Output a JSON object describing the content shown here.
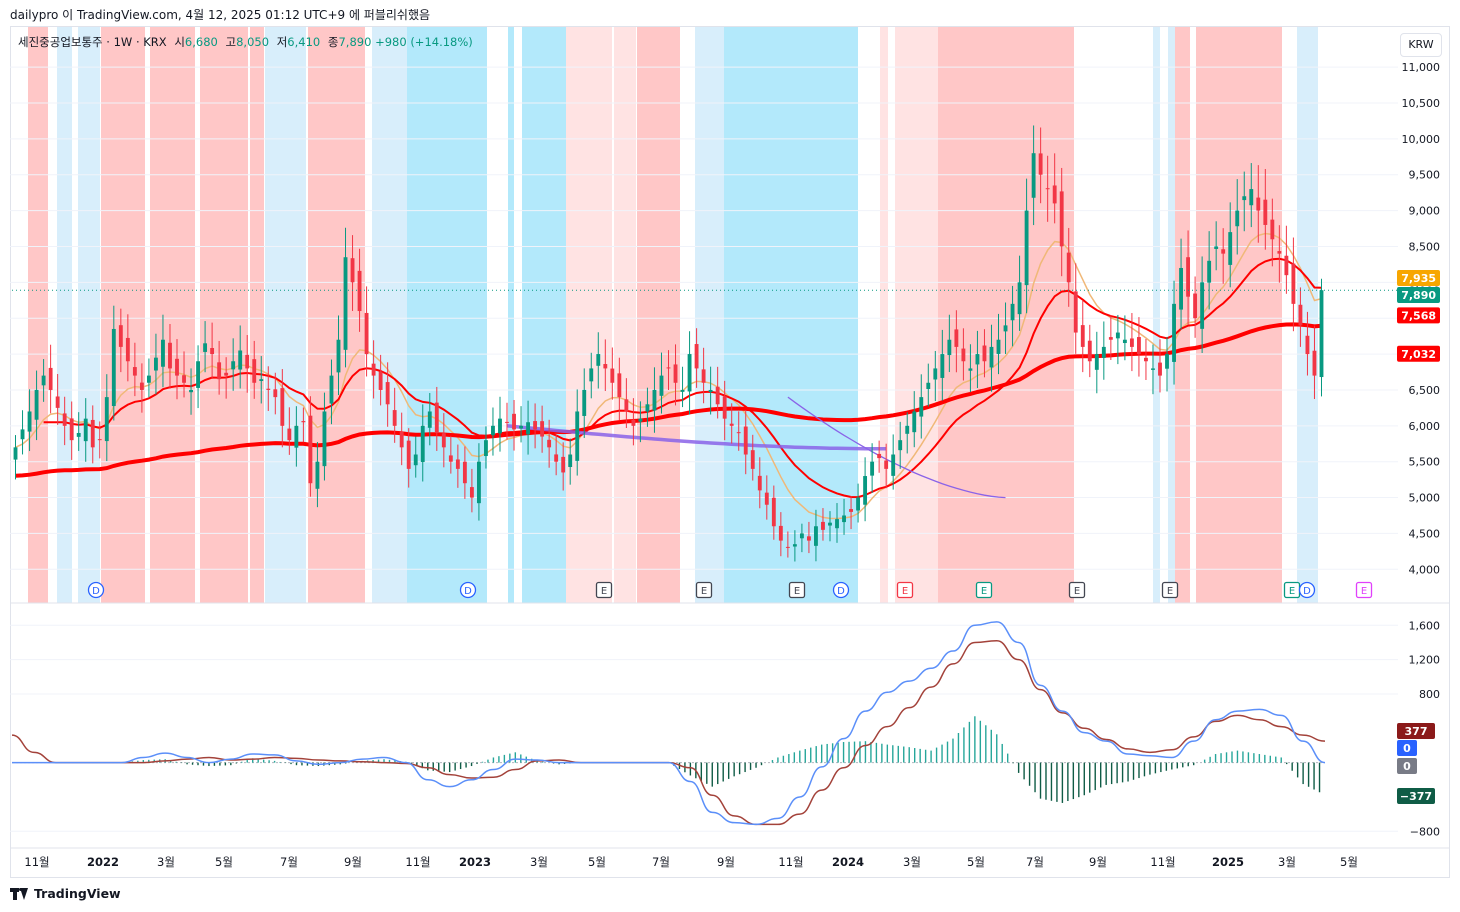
{
  "header": {
    "text": "dailypro 이 TradingView.com, 4월 12, 2025 01:12 UTC+9 에 퍼블리쉬했음"
  },
  "legend": {
    "symbol": "세진중공업보통주 · 1W · KRX",
    "open_label": "시",
    "open": "6,680",
    "high_label": "고",
    "high": "8,050",
    "low_label": "저",
    "low": "6,410",
    "close_label": "종",
    "close": "7,890",
    "change": "+980 (+14.18%)"
  },
  "currency": "KRW",
  "footer": {
    "brand": "TradingView"
  },
  "colors": {
    "up": "#089981",
    "down": "#f23645",
    "red_ma": "#ff0000",
    "tan_ma": "#f0b878",
    "purple": "#8a63e8",
    "macd": "#5b8ff9",
    "signal": "#a3423a"
  },
  "chart_data": [
    {
      "type": "candlestick",
      "title": "세진중공업보통주 · 1W · KRX",
      "currency": "KRW",
      "y_ticks": [
        4000,
        4500,
        5000,
        5500,
        6000,
        6500,
        7000,
        7500,
        8000,
        8500,
        9000,
        9500,
        10000,
        10500,
        11000
      ],
      "y_tick_labels": [
        "4,000",
        "4,500",
        "5,000",
        "5,500",
        "6,000",
        "6,500",
        "7,000",
        "7,500",
        "8,000",
        "8,500",
        "9,000",
        "9,500",
        "10,000",
        "10,500",
        "11,000"
      ],
      "ylim": [
        3600,
        11350
      ],
      "x_ticks": [
        "11월",
        "2022",
        "3월",
        "5월",
        "7월",
        "9월",
        "11월",
        "2023",
        "3월",
        "5월",
        "7월",
        "9월",
        "11월",
        "2024",
        "3월",
        "5월",
        "7월",
        "9월",
        "11월",
        "2025",
        "3월",
        "5월"
      ],
      "price_labels": [
        {
          "text": "7,935",
          "value": 7935,
          "color": "#f7a600"
        },
        {
          "text": "7,890",
          "value": 7890,
          "color": "#089981"
        },
        {
          "text": "7,568",
          "value": 7568,
          "color": "#ff0000"
        },
        {
          "text": "7,032",
          "value": 7032,
          "color": "#ff0000"
        }
      ],
      "closes": [
        5700,
        5950,
        6200,
        6500,
        6700,
        6500,
        6250,
        6000,
        5800,
        5900,
        6100,
        5700,
        5800,
        6400,
        7350,
        7100,
        6900,
        6700,
        6500,
        6700,
        6950,
        7200,
        6800,
        6700,
        6600,
        6500,
        6900,
        7150,
        7000,
        6650,
        6700,
        6900,
        7050,
        6800,
        6600,
        6650,
        6500,
        6400,
        6000,
        5800,
        6000,
        6050,
        5200,
        5500,
        6200,
        6700,
        7200,
        8350,
        8000,
        7600,
        7000,
        6700,
        6500,
        6300,
        6000,
        5700,
        5400,
        5600,
        6000,
        6200,
        5900,
        5700,
        5500,
        5400,
        5200,
        5000,
        5500,
        5800,
        6000,
        6100,
        6050,
        5950,
        6000,
        6050,
        5950,
        5850,
        5700,
        5500,
        5350,
        5600,
        6200,
        6500,
        6800,
        7000,
        6800,
        6600,
        6400,
        6200,
        6000,
        6100,
        6300,
        6500,
        6700,
        6800,
        6600,
        6500,
        7000,
        6800,
        6600,
        6500,
        6300,
        6100,
        6000,
        5900,
        5600,
        5400,
        5100,
        4900,
        4600,
        4400,
        4300,
        4350,
        4500,
        4400,
        4600,
        4550,
        4650,
        4700,
        4750,
        4800,
        5000,
        5300,
        5500,
        5550,
        5400,
        5600,
        5800,
        6000,
        6200,
        6400,
        6600,
        6800,
        7000,
        7200,
        7100,
        6900,
        6800,
        7000,
        6900,
        7100,
        7200,
        7400,
        7700,
        8000,
        9000,
        9800,
        9500,
        9300,
        9100,
        8500,
        8000,
        7300,
        7100,
        6900,
        7000,
        7100,
        7200,
        7300,
        7200,
        7100,
        7000,
        6900,
        6800,
        6700,
        7000,
        7700,
        8200,
        7800,
        7500,
        8000,
        8300,
        8500,
        8400,
        8700,
        9000,
        9200,
        9300,
        9000,
        8800,
        8600,
        8400,
        8100,
        7700,
        7400,
        7000,
        6700,
        7890
      ],
      "purple_ma": {
        "start_value": 6000,
        "bottom_value": 5680,
        "end_value": 7032
      },
      "bands": {
        "colors": [
          "#ffc7c7",
          "#ffe3e3",
          "#b3e9fb",
          "#d8eefb"
        ]
      },
      "event_markers": [
        {
          "label": "D",
          "x_tick": "2022"
        },
        {
          "label": "D",
          "x_tick": "2023"
        },
        {
          "label": "E",
          "x_tick": "5월"
        },
        {
          "label": "E",
          "x_tick": "7월"
        },
        {
          "label": "E",
          "x_tick": "11월"
        },
        {
          "label": "D",
          "x_tick": "2024"
        },
        {
          "label": "E",
          "x_tick": "3월"
        },
        {
          "label": "E",
          "x_tick": "5월"
        },
        {
          "label": "E",
          "x_tick": "9월"
        },
        {
          "label": "E",
          "x_tick": "11월"
        },
        {
          "label": "E",
          "x_tick": "3월"
        },
        {
          "label": "D",
          "x_tick": "3월"
        },
        {
          "label": "E",
          "x_tick": "5월"
        }
      ]
    },
    {
      "type": "line",
      "title": "",
      "y_ticks": [
        -800,
        800,
        1200,
        1600
      ],
      "y_tick_labels": [
        "−800",
        "800",
        "1,200",
        "1,600"
      ],
      "ylim": [
        -960,
        1720
      ],
      "series": [
        {
          "values": [
            0,
            0,
            0,
            0,
            0,
            0,
            60,
            110,
            60,
            0,
            40,
            100,
            90,
            20,
            -20,
            0,
            40,
            60,
            0,
            -200,
            -280,
            -200,
            -80,
            40,
            30,
            0,
            0,
            0,
            0,
            0,
            0,
            -220,
            -580,
            -700,
            -720,
            -650,
            -400,
            -50,
            280,
            600,
            820,
            950,
            1100,
            1300,
            1600,
            1640,
            1400,
            900,
            600,
            350,
            250,
            100,
            80,
            60,
            250,
            500,
            600,
            620,
            550,
            250,
            0
          ]
        },
        {
          "values": [
            320,
            120,
            0,
            0,
            0,
            0,
            0,
            20,
            40,
            60,
            30,
            40,
            60,
            50,
            30,
            20,
            10,
            0,
            -10,
            -60,
            -140,
            -180,
            -170,
            -80,
            20,
            30,
            0,
            0,
            0,
            0,
            0,
            -60,
            -380,
            -620,
            -720,
            -720,
            -600,
            -320,
            -60,
            200,
            420,
            640,
            880,
            1150,
            1400,
            1420,
            1200,
            850,
            580,
            400,
            270,
            160,
            120,
            150,
            300,
            480,
            550,
            500,
            420,
            320,
            250
          ]
        },
        {
          "values": [
            0,
            0,
            0,
            0,
            0,
            0,
            30,
            40,
            -20,
            -40,
            -30,
            50,
            20,
            -30,
            -40,
            -20,
            20,
            40,
            10,
            -90,
            -110,
            -40,
            60,
            120,
            20,
            -20,
            0,
            0,
            0,
            0,
            0,
            -150,
            -280,
            -160,
            -60,
            60,
            140,
            210,
            240,
            250,
            210,
            180,
            140,
            280,
            540,
            330,
            -120,
            -420,
            -470,
            -380,
            -260,
            -220,
            -140,
            -80,
            -30,
            100,
            140,
            100,
            60,
            -250,
            -377
          ]
        }
      ],
      "value_labels": [
        {
          "text": "377",
          "color": "#8b1a1a"
        },
        {
          "text": "0",
          "color": "#2962ff"
        },
        {
          "text": "0",
          "color": "#787b86"
        },
        {
          "text": "−377",
          "color": "#0f5c46"
        }
      ]
    }
  ]
}
